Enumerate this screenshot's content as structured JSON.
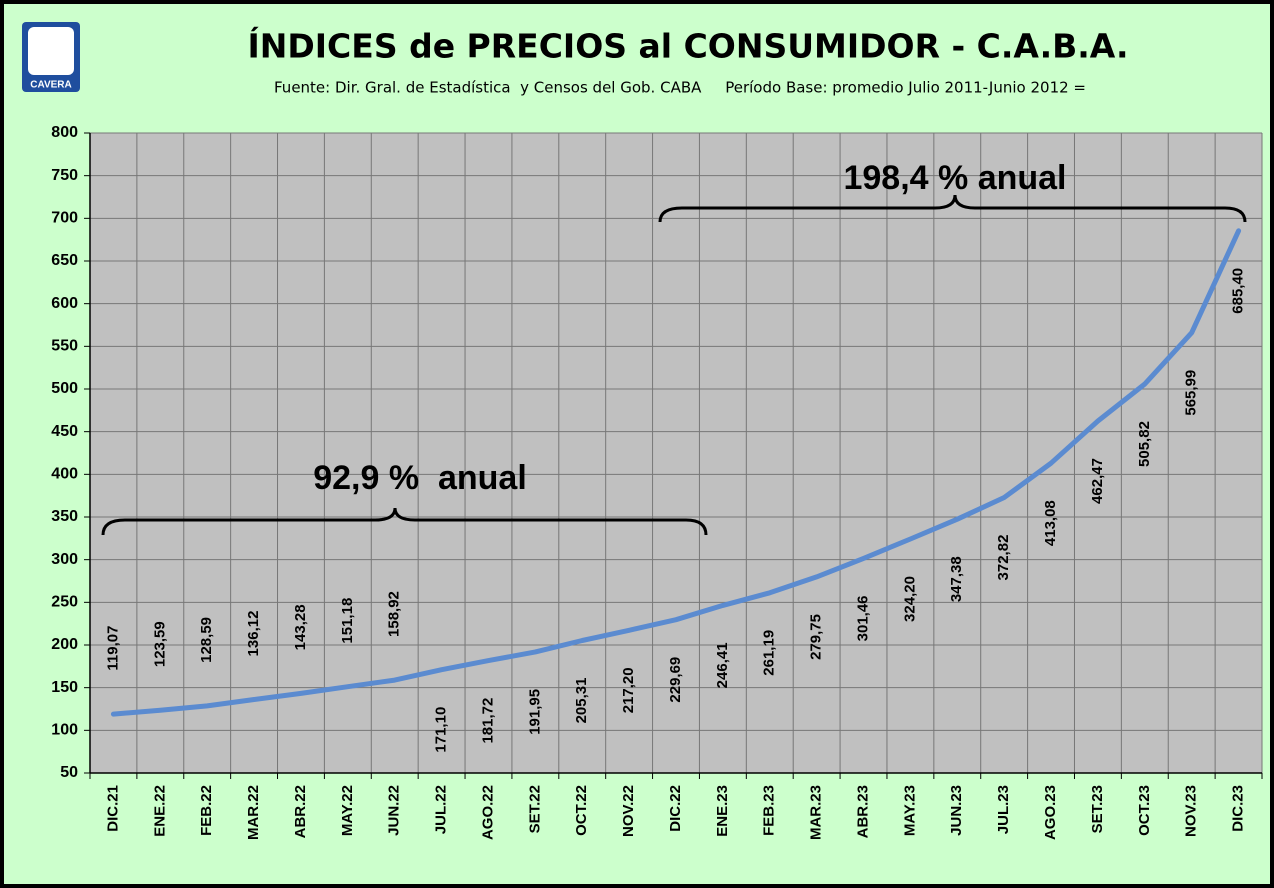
{
  "chart_data": {
    "type": "line",
    "title": "ÍNDICES de PRECIOS al CONSUMIDOR - C.A.B.A.",
    "subtitle": "Fuente: Dir. Gral. de Estadística  y Censos del Gob. CABA     Período Base: promedio Julio 2011-Junio 2012 =",
    "logo": "CAVERA",
    "annotations": [
      "92,9 %  anual",
      "198,4 % anual"
    ],
    "categories": [
      "DIC.21",
      "ENE.22",
      "FEB.22",
      "MAR.22",
      "ABR.22",
      "MAY.22",
      "JUN.22",
      "JUL.22",
      "AGO.22",
      "SET.22",
      "OCT.22",
      "NOV.22",
      "DIC.22",
      "ENE.23",
      "FEB.23",
      "MAR.23",
      "ABR.23",
      "MAY.23",
      "JUN.23",
      "JUL.23",
      "AGO.23",
      "SET.23",
      "OCT.23",
      "NOV.23",
      "DIC.23"
    ],
    "values": [
      119.07,
      123.59,
      128.59,
      136.12,
      143.28,
      151.18,
      158.92,
      171.1,
      181.72,
      191.95,
      205.31,
      217.2,
      229.69,
      246.41,
      261.19,
      279.75,
      301.46,
      324.2,
      347.38,
      372.82,
      413.08,
      462.47,
      505.82,
      565.99,
      685.4
    ],
    "value_labels": [
      "119,07",
      "123,59",
      "128,59",
      "136,12",
      "143,28",
      "151,18",
      "158,92",
      "171,10",
      "181,72",
      "191,95",
      "205,31",
      "217,20",
      "229,69",
      "246,41",
      "261,19",
      "279,75",
      "301,46",
      "324,20",
      "347,38",
      "372,82",
      "413,08",
      "462,47",
      "505,82",
      "565,99",
      "685,40"
    ],
    "color": "#5b8bd0",
    "ylim": [
      50,
      800
    ],
    "yticks": [
      50,
      100,
      150,
      200,
      250,
      300,
      350,
      400,
      450,
      500,
      550,
      600,
      650,
      700,
      750,
      800
    ],
    "grid": true
  }
}
